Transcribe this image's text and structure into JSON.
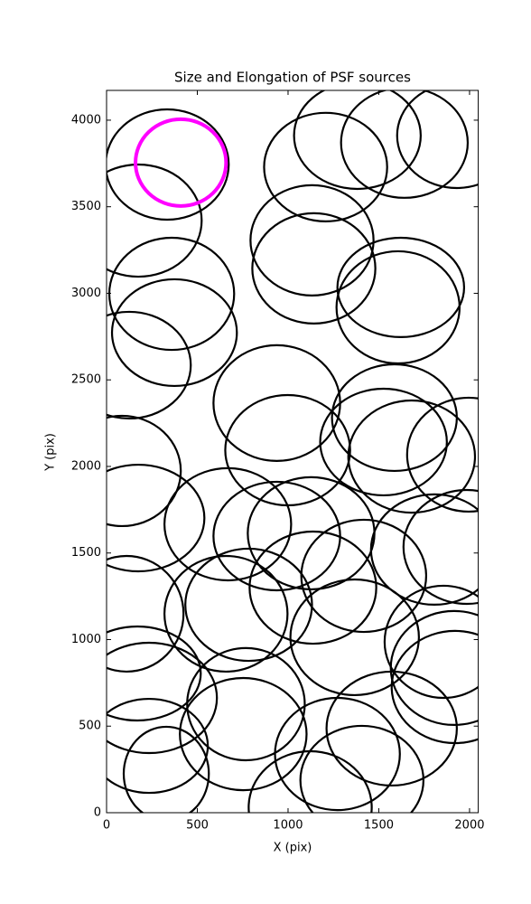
{
  "chart_data": {
    "type": "ellipse",
    "title": "Size and Elongation of PSF sources",
    "x_label": "X (pix)",
    "y_label": "Y (pix)",
    "xlim": [
      0,
      2048
    ],
    "ylim": [
      0,
      4172
    ],
    "xticks": [
      0,
      500,
      1000,
      1500,
      2000
    ],
    "yticks": [
      0,
      500,
      1000,
      1500,
      2000,
      2500,
      3000,
      3500,
      4000
    ],
    "grid": false,
    "color": "#000000",
    "ellipses": {
      "x": [
        334,
        175,
        359,
        374,
        125,
        85,
        175,
        668,
        938,
        1127,
        998,
        938,
        1207,
        1382,
        1641,
        1930,
        1132,
        1142,
        1621,
        1606,
        1586,
        1526,
        1681,
        1995,
        1806,
        1985,
        1417,
        1137,
        783,
        658,
        1367,
        1856,
        1915,
        110,
        170,
        234,
        234,
        329,
        768,
        753,
        1272,
        1571,
        1407,
        1122,
        1920
      ],
      "y": [
        3744,
        3420,
        2997,
        2773,
        2585,
        1974,
        1702,
        1666,
        1598,
        1614,
        2094,
        2366,
        3729,
        3911,
        3870,
        3911,
        3306,
        3144,
        3034,
        2919,
        2282,
        2141,
        2057,
        2068,
        1520,
        1535,
        1368,
        1300,
        1201,
        1149,
        1013,
        987,
        836,
        1149,
        804,
        663,
        386,
        225,
        627,
        454,
        339,
        486,
        188,
        31,
        726
      ],
      "width": [
        678,
        698,
        688,
        688,
        678,
        648,
        728,
        698,
        698,
        698,
        688,
        698,
        678,
        698,
        698,
        658,
        678,
        678,
        698,
        678,
        688,
        698,
        698,
        678,
        698,
        698,
        688,
        698,
        698,
        678,
        708,
        648,
        698,
        628,
        698,
        748,
        648,
        469,
        648,
        698,
        688,
        718,
        678,
        678,
        698
      ],
      "height": [
        637,
        648,
        648,
        616,
        616,
        637,
        616,
        648,
        627,
        648,
        637,
        668,
        627,
        616,
        637,
        606,
        637,
        637,
        574,
        648,
        616,
        616,
        648,
        658,
        637,
        658,
        648,
        648,
        648,
        668,
        668,
        648,
        658,
        668,
        543,
        637,
        543,
        543,
        648,
        648,
        648,
        658,
        627,
        648,
        648
      ]
    },
    "highlight": {
      "x": 409,
      "y": 3755,
      "width": 499,
      "height": 501,
      "color": "#ff00ff"
    }
  }
}
